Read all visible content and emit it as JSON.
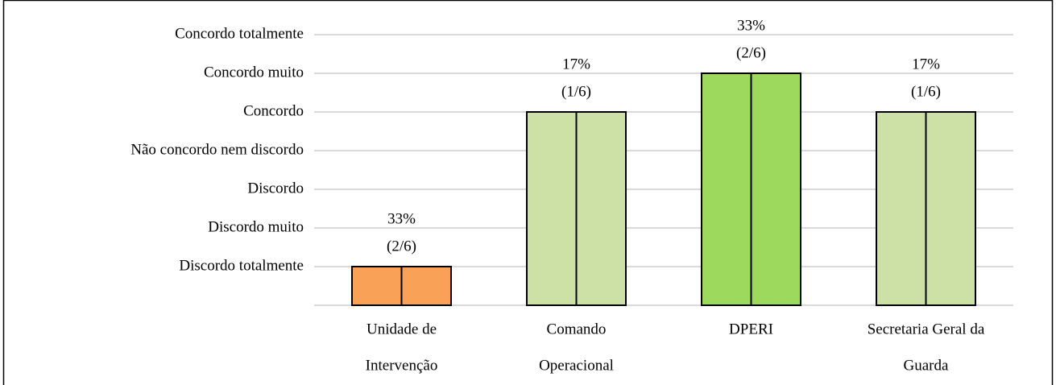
{
  "chart_data": {
    "type": "bar",
    "categories": [
      [
        "Unidade de",
        "Intervenção"
      ],
      [
        "Comando",
        "Operacional"
      ],
      [
        "DPERI"
      ],
      [
        "Secretaria Geral da",
        "Guarda"
      ]
    ],
    "values": [
      1,
      5,
      6,
      5
    ],
    "colors": [
      "#f9a257",
      "#cde1a7",
      "#9dd95c",
      "#cde1a7"
    ],
    "bar_labels": [
      [
        "33%",
        "(2/6)"
      ],
      [
        "17%",
        "(1/6)"
      ],
      [
        "33%",
        "(2/6)"
      ],
      [
        "17%",
        "(1/6)"
      ]
    ],
    "ylim": [
      0,
      7
    ],
    "yticks": [
      {
        "value": 1,
        "label": "Discordo totalmente"
      },
      {
        "value": 2,
        "label": "Discordo muito"
      },
      {
        "value": 3,
        "label": "Discordo"
      },
      {
        "value": 4,
        "label": "Não concordo nem discordo"
      },
      {
        "value": 5,
        "label": "Concordo"
      },
      {
        "value": 6,
        "label": "Concordo muito"
      },
      {
        "value": 7,
        "label": "Concordo totalmente"
      }
    ],
    "grid": true
  }
}
